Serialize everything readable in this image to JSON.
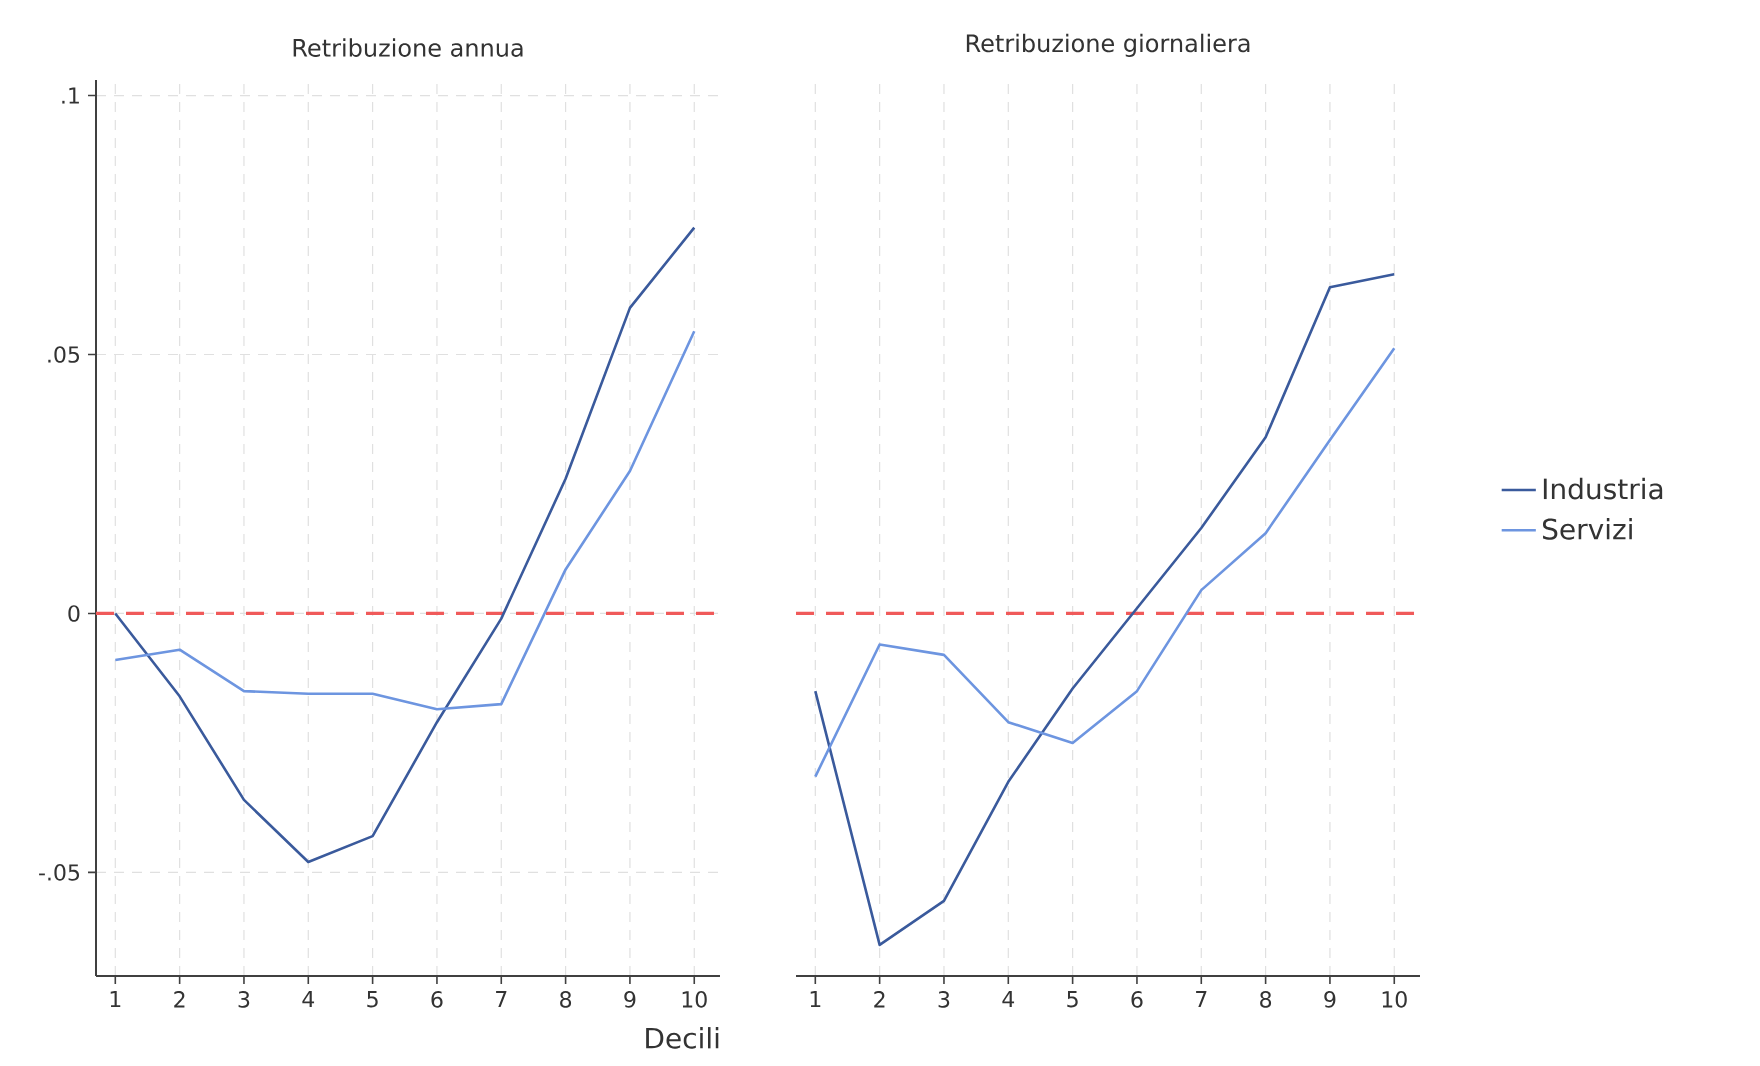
{
  "chart_data": [
    {
      "type": "line",
      "title": "Retribuzione annua",
      "xlabel": "Decili",
      "x": [
        1,
        2,
        3,
        4,
        5,
        6,
        7,
        8,
        9,
        10
      ],
      "series": [
        {
          "name": "Industria",
          "color": "#3a5a9c",
          "values": [
            0,
            -0.016,
            -0.036,
            -0.048,
            -0.043,
            -0.021,
            -0.001,
            0.026,
            0.059,
            0.0745
          ]
        },
        {
          "name": "Servizi",
          "color": "#6d95e0",
          "values": [
            -0.009,
            -0.007,
            -0.015,
            -0.0155,
            -0.0155,
            -0.0185,
            -0.0175,
            0.0085,
            0.0275,
            0.0545
          ]
        }
      ],
      "xlim": [
        0.7,
        10.4
      ],
      "ylim": [
        -0.07,
        0.103
      ],
      "xticks": [
        1,
        2,
        3,
        4,
        5,
        6,
        7,
        8,
        9,
        10
      ],
      "yticks": [
        {
          "value": -0.05,
          "label": "-.05"
        },
        {
          "value": 0,
          "label": "0"
        },
        {
          "value": 0.05,
          "label": ".05"
        },
        {
          "value": 0.1,
          "label": ".1"
        }
      ],
      "grid": true,
      "legend": "right",
      "ref_lines": [
        {
          "axis": "y",
          "value": 0,
          "color": "#f05a5a",
          "line_style": "dashed"
        }
      ]
    },
    {
      "type": "line",
      "title": "Retribuzione giornaliera",
      "x": [
        1,
        2,
        3,
        4,
        5,
        6,
        7,
        8,
        9,
        10
      ],
      "series": [
        {
          "color": "#3a5a9c",
          "values": [
            -0.015,
            -0.064,
            -0.0555,
            -0.0325,
            -0.0145,
            0.001,
            0.0165,
            0.034,
            0.063,
            0.0655
          ]
        },
        {
          "color": "#6d95e0",
          "values": [
            -0.0315,
            -0.006,
            -0.008,
            -0.021,
            -0.025,
            -0.015,
            0.0045,
            0.0155,
            0.0335,
            0.0512
          ]
        }
      ],
      "xlim": [
        0.7,
        10.4
      ],
      "ylim": [
        -0.07,
        0.103
      ],
      "xticks": [
        1,
        2,
        3,
        4,
        5,
        6,
        7,
        8,
        9,
        10
      ],
      "tick_labels": "x",
      "grid": true,
      "yticks": [
        {
          "value": -0.05,
          "label": null
        },
        {
          "value": 0,
          "label": null
        },
        {
          "value": 0.05,
          "label": null
        },
        {
          "value": 0.1,
          "label": null
        }
      ],
      "ref_lines": [
        {
          "axis": "y",
          "value": 0,
          "color": "#f05a5a",
          "line_style": "dashed"
        }
      ]
    }
  ]
}
